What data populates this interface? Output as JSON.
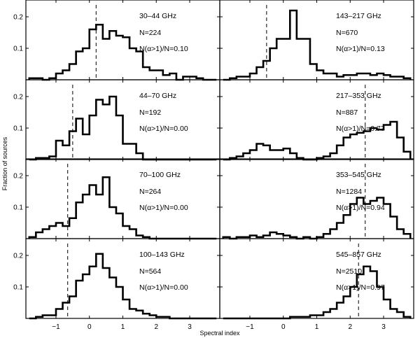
{
  "chart_data": {
    "type": "histogram-grid",
    "xlabel": "Spectral index",
    "ylabel": "Fraction of sources",
    "xlim": [
      -1.9,
      3.9
    ],
    "ylim": [
      0,
      0.24
    ],
    "x_ticks": [
      -1,
      0,
      1,
      2,
      3
    ],
    "y_ticks": [
      0.1,
      0.2
    ],
    "bin_width": 0.2,
    "bin_start": -1.8,
    "panels": [
      {
        "band": "30–44 GHz",
        "count_label": "N=224",
        "frac_label": "N(α>1)/N=0.10",
        "median": 0.2,
        "values": [
          0.005,
          0.005,
          0.0,
          0.005,
          0.02,
          0.03,
          0.05,
          0.09,
          0.1,
          0.16,
          0.175,
          0.13,
          0.155,
          0.14,
          0.135,
          0.1,
          0.09,
          0.04,
          0.03,
          0.03,
          0.015,
          0.02,
          0.0,
          0.01,
          0.01,
          0.005,
          0.0,
          0.0
        ]
      },
      {
        "band": "143–217 GHz",
        "count_label": "N=670",
        "frac_label": "N(α>1)/N=0.13",
        "median": -0.5,
        "values": [
          0.0,
          0.005,
          0.01,
          0.01,
          0.02,
          0.04,
          0.06,
          0.1,
          0.13,
          0.13,
          0.22,
          0.13,
          0.13,
          0.05,
          0.03,
          0.02,
          0.02,
          0.01,
          0.015,
          0.015,
          0.02,
          0.02,
          0.015,
          0.02,
          0.015,
          0.01,
          0.01,
          0.005
        ]
      },
      {
        "band": "44–70 GHz",
        "count_label": "N=192",
        "frac_label": "N(α>1)/N=0.00",
        "median": -0.5,
        "values": [
          0.0,
          0.005,
          0.005,
          0.01,
          0.06,
          0.045,
          0.09,
          0.13,
          0.08,
          0.14,
          0.19,
          0.175,
          0.2,
          0.14,
          0.05,
          0.05,
          0.02,
          0.0,
          0.0,
          0.0,
          0.0,
          0.0,
          0.0,
          0.0,
          0.0,
          0.0,
          0.0,
          0.0
        ]
      },
      {
        "band": "217–353 GHz",
        "count_label": "N=887",
        "frac_label": "N(α>1)/N=0.77",
        "median": 2.45,
        "values": [
          0.0,
          0.005,
          0.01,
          0.02,
          0.03,
          0.05,
          0.045,
          0.03,
          0.03,
          0.035,
          0.02,
          0.005,
          0.0,
          0.0,
          0.005,
          0.01,
          0.02,
          0.045,
          0.07,
          0.08,
          0.085,
          0.09,
          0.1,
          0.095,
          0.11,
          0.12,
          0.07,
          0.025
        ]
      },
      {
        "band": "70–100 GHz",
        "count_label": "N=264",
        "frac_label": "N(α>1)/N=0.00",
        "median": -0.65,
        "values": [
          0.005,
          0.02,
          0.03,
          0.04,
          0.05,
          0.04,
          0.065,
          0.115,
          0.14,
          0.17,
          0.14,
          0.195,
          0.1,
          0.08,
          0.04,
          0.03,
          0.01,
          0.005,
          0.0,
          0.0,
          0.0,
          0.0,
          0.0,
          0.0,
          0.0,
          0.0,
          0.0,
          0.0
        ]
      },
      {
        "band": "353–545 GHz",
        "count_label": "N=1284",
        "frac_label": "N(α>1)/N=0.94",
        "median": 2.45,
        "values": [
          0.005,
          0.0,
          0.005,
          0.005,
          0.01,
          0.005,
          0.01,
          0.02,
          0.015,
          0.01,
          0.005,
          0.0,
          0.005,
          0.0,
          0.005,
          0.015,
          0.03,
          0.05,
          0.075,
          0.11,
          0.13,
          0.11,
          0.12,
          0.13,
          0.11,
          0.07,
          0.03,
          0.015
        ]
      },
      {
        "band": "100–143 GHz",
        "count_label": "N=564",
        "frac_label": "N(α>1)/N=0.00",
        "median": -0.65,
        "values": [
          0.0,
          0.005,
          0.01,
          0.01,
          0.03,
          0.05,
          0.07,
          0.12,
          0.14,
          0.165,
          0.205,
          0.16,
          0.13,
          0.1,
          0.06,
          0.03,
          0.025,
          0.015,
          0.01,
          0.005,
          0.005,
          0.0,
          0.0,
          0.0,
          0.0,
          0.0,
          0.0,
          0.0
        ]
      },
      {
        "band": "545–857 GHz",
        "count_label": "N=2510",
        "frac_label": "N(α>1)/N=0.97",
        "median": 2.25,
        "values": [
          0.0,
          0.0,
          0.0,
          0.0,
          0.0,
          0.0,
          0.0,
          0.0,
          0.0,
          0.0,
          0.005,
          0.005,
          0.005,
          0.01,
          0.01,
          0.02,
          0.03,
          0.05,
          0.07,
          0.1,
          0.14,
          0.165,
          0.15,
          0.1,
          0.06,
          0.03,
          0.02,
          0.005
        ]
      }
    ]
  }
}
